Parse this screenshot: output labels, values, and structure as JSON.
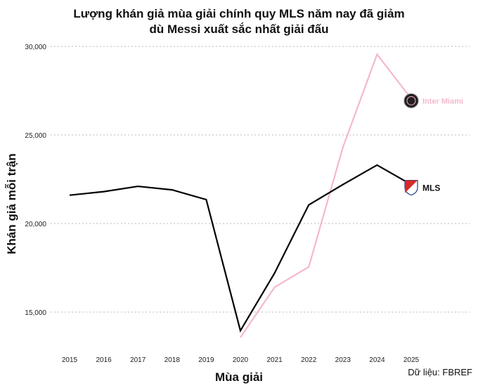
{
  "chart_data": {
    "type": "line",
    "title": [
      "Lượng khán giả mùa giải chính quy MLS năm nay đã giảm",
      "dù Messi xuất sắc nhất giải đấu"
    ],
    "xlabel": "Mùa giải",
    "ylabel": "Khán giả mỗi trận",
    "source": "Dữ liệu: FBREF",
    "x": [
      2015,
      2016,
      2017,
      2018,
      2019,
      2020,
      2021,
      2022,
      2023,
      2024,
      2025
    ],
    "x_tick_labels": [
      "2015",
      "2016",
      "2017",
      "2018",
      "2019",
      "2020",
      "2021",
      "2022",
      "2023",
      "2024",
      "2025"
    ],
    "y_ticks": [
      15000,
      20000,
      25000,
      30000
    ],
    "y_tick_labels": [
      "15,000",
      "20,000",
      "25,000",
      "30,000"
    ],
    "ylim": [
      12800,
      30400
    ],
    "grid": "horizontal dotted",
    "series": [
      {
        "name": "MLS",
        "color": "#000000",
        "icon": "mls-logo",
        "values": [
          21600,
          21800,
          22100,
          21900,
          21350,
          13950,
          17200,
          21050,
          22200,
          23300,
          22200
        ]
      },
      {
        "name": "Inter Miami",
        "color": "#f5b8cd",
        "icon": "inter-miami-crest",
        "values": [
          null,
          null,
          null,
          null,
          null,
          13570,
          16400,
          17550,
          24300,
          29550,
          27050
        ]
      }
    ]
  }
}
